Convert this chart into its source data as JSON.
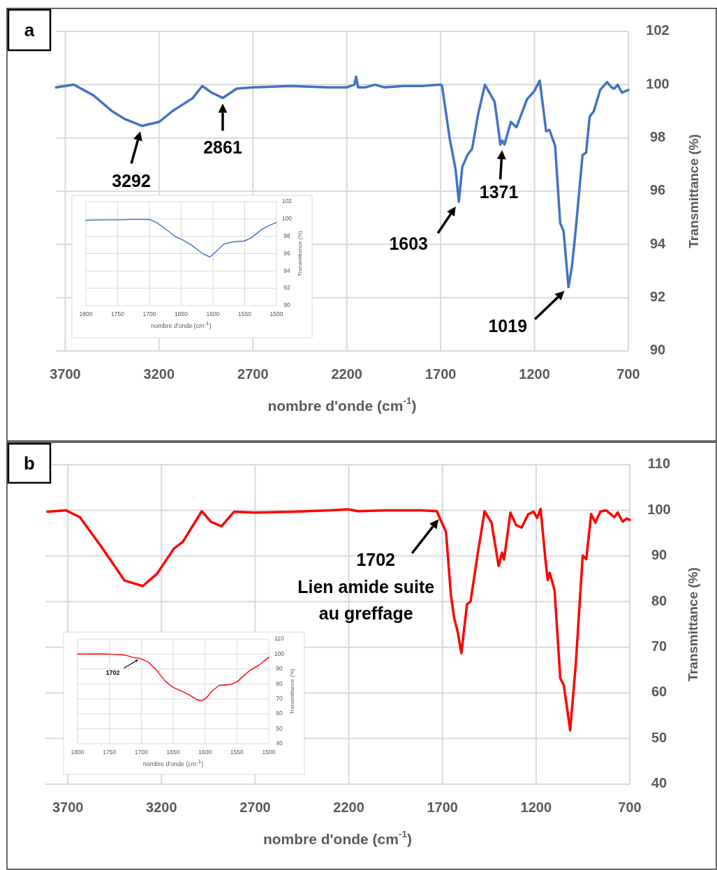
{
  "chart_data": [
    {
      "type": "line",
      "title": "a",
      "xlabel": "nombre d'onde (cm$^{-1}$)",
      "ylabel": "Transmittance  (%)",
      "xlim": [
        3750,
        700
      ],
      "ylim": [
        90,
        102
      ],
      "xticks": [
        3700,
        3200,
        2700,
        2200,
        1700,
        1200,
        700
      ],
      "yticks": [
        90,
        92,
        94,
        96,
        98,
        100,
        102
      ],
      "grid": true,
      "x": [
        3749,
        3700,
        3655,
        3550,
        3450,
        3380,
        3292,
        3200,
        3130,
        3086,
        3020,
        2970,
        2920,
        2861,
        2786,
        2700,
        2500,
        2300,
        2200,
        2160,
        2150,
        2140,
        2100,
        2050,
        2000,
        1900,
        1800,
        1700,
        1693,
        1651,
        1620,
        1603,
        1585,
        1558,
        1532,
        1500,
        1464,
        1412,
        1390,
        1382,
        1371,
        1360,
        1326,
        1296,
        1240,
        1202,
        1172,
        1155,
        1138,
        1120,
        1090,
        1063,
        1045,
        1019,
        1000,
        981,
        944,
        925,
        906,
        884,
        850,
        813,
        790,
        775,
        757,
        734,
        700
      ],
      "series": [
        {
          "color": "#4472c4",
          "values": [
            99.9,
            99.95,
            100,
            99.6,
            99.0,
            98.7,
            98.45,
            98.6,
            99.0,
            99.2,
            99.5,
            99.95,
            99.7,
            99.5,
            99.85,
            99.9,
            99.95,
            99.9,
            99.9,
            100.0,
            100.3,
            99.9,
            99.9,
            100.0,
            99.9,
            99.95,
            99.95,
            100.0,
            99.97,
            97.95,
            96.8,
            95.6,
            96.9,
            97.35,
            97.6,
            98.9,
            100.0,
            99.35,
            98.2,
            97.75,
            97.9,
            97.75,
            98.6,
            98.4,
            99.45,
            99.75,
            100.15,
            99.2,
            98.25,
            98.3,
            97.7,
            94.8,
            94.5,
            92.4,
            93.2,
            94.5,
            97.35,
            97.45,
            98.8,
            99.0,
            99.8,
            100.1,
            99.9,
            99.85,
            100.0,
            99.7,
            99.8
          ]
        }
      ],
      "annotations": [
        {
          "text": "3292",
          "x": 3292,
          "y": 98.45
        },
        {
          "text": "2861",
          "x": 2861,
          "y": 99.5
        },
        {
          "text": "1603",
          "x": 1603,
          "y": 95.6
        },
        {
          "text": "1371",
          "x": 1371,
          "y": 97.75
        },
        {
          "text": "1019",
          "x": 1019,
          "y": 92.4
        }
      ]
    },
    {
      "type": "line",
      "xlabel": "nombre d'onde (cm$^{-1}$)",
      "ylabel": "Transmittance  (%)",
      "xlim": [
        1800,
        1500
      ],
      "ylim": [
        90,
        102
      ],
      "xticks": [
        1800,
        1750,
        1700,
        1650,
        1600,
        1550,
        1500
      ],
      "yticks": [
        90,
        92,
        94,
        96,
        98,
        100,
        102
      ],
      "grid": true,
      "x": [
        1800,
        1770,
        1750,
        1730,
        1710,
        1700,
        1688,
        1672,
        1659,
        1648,
        1634,
        1616,
        1605,
        1594,
        1583,
        1569,
        1551,
        1540,
        1522,
        1510,
        1500
      ],
      "series": [
        {
          "color": "#4472c4",
          "values": [
            99.85,
            99.9,
            99.9,
            99.95,
            99.95,
            99.95,
            99.55,
            98.7,
            97.95,
            97.6,
            97.0,
            96.0,
            95.6,
            96.3,
            97.1,
            97.35,
            97.45,
            97.8,
            98.85,
            99.3,
            99.6
          ]
        }
      ]
    },
    {
      "type": "line",
      "title": "b",
      "xlabel": "nombre d'onde (cm$^{-1}$)",
      "ylabel": "Transmittance  (%)",
      "xlim": [
        3820,
        700
      ],
      "ylim": [
        40,
        110
      ],
      "xticks": [
        3700,
        3200,
        2700,
        2200,
        1700,
        1200,
        700
      ],
      "yticks": [
        40,
        50,
        60,
        70,
        80,
        90,
        100,
        110
      ],
      "grid": true,
      "x": [
        3809,
        3711,
        3636,
        3524,
        3397,
        3300,
        3224,
        3134,
        3086,
        2985,
        2936,
        2880,
        2812,
        2700,
        2500,
        2300,
        2200,
        2150,
        2000,
        1813,
        1730,
        1711,
        1681,
        1655,
        1637,
        1618,
        1599,
        1569,
        1550,
        1513,
        1475,
        1438,
        1400,
        1382,
        1371,
        1337,
        1307,
        1277,
        1243,
        1213,
        1195,
        1176,
        1150,
        1138,
        1127,
        1101,
        1071,
        1052,
        1018,
        988,
        951,
        932,
        906,
        884,
        857,
        827,
        782,
        764,
        738,
        715,
        700
      ],
      "series": [
        {
          "color": "#ff0000",
          "values": [
            99.7,
            100,
            98.5,
            92.2,
            84.6,
            83.4,
            86.1,
            91.6,
            93.1,
            99.8,
            97.5,
            96.5,
            99.7,
            99.5,
            99.7,
            100.0,
            100.2,
            99.8,
            100.0,
            100,
            99.8,
            98,
            95.3,
            81.5,
            76.3,
            73.3,
            68.7,
            79.4,
            80,
            90.1,
            99.8,
            97.3,
            87.8,
            90.7,
            89.2,
            99.5,
            96.8,
            96.2,
            99.1,
            99.7,
            98.3,
            100.3,
            89.2,
            84.7,
            86.3,
            82.4,
            63.2,
            61.7,
            51.8,
            66.3,
            90.1,
            89.3,
            99.2,
            97.3,
            99.7,
            100,
            98.5,
            99.5,
            97.5,
            98.2,
            97.9
          ]
        }
      ],
      "annotations": [
        {
          "text": "1702\nLien amide suite\nau greffage",
          "x": 1702,
          "y": 99
        }
      ]
    },
    {
      "type": "line",
      "xlabel": "nombre d'onde (cm$^{-1}$)",
      "ylabel": "Transmittance (%)",
      "xlim": [
        1800,
        1500
      ],
      "ylim": [
        40,
        110
      ],
      "xticks": [
        1800,
        1750,
        1700,
        1650,
        1600,
        1550,
        1500
      ],
      "yticks": [
        40,
        50,
        60,
        70,
        80,
        90,
        100,
        110
      ],
      "grid": true,
      "x": [
        1800,
        1760,
        1740,
        1725,
        1714,
        1702,
        1689,
        1675,
        1662,
        1651,
        1639,
        1624,
        1613,
        1606,
        1599,
        1588,
        1578,
        1559,
        1549,
        1531,
        1516,
        1500
      ],
      "series": [
        {
          "color": "#ff0000",
          "values": [
            100,
            100.1,
            99.8,
            99.3,
            97.8,
            97.0,
            94.7,
            88.6,
            81.7,
            77.9,
            75.6,
            72.5,
            69.5,
            68.7,
            70.2,
            75.6,
            79.0,
            79.7,
            81.7,
            88.6,
            92.4,
            97.8
          ]
        }
      ],
      "annotations": [
        {
          "text": "1702",
          "x": 1702,
          "y": 97
        }
      ]
    }
  ]
}
